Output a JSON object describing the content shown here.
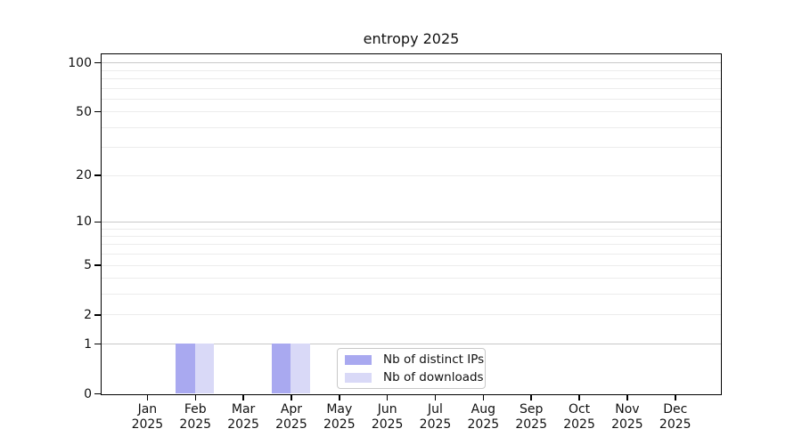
{
  "chart_data": {
    "type": "bar",
    "title": "entropy 2025",
    "categories": [
      "Jan",
      "Feb",
      "Mar",
      "Apr",
      "May",
      "Jun",
      "Jul",
      "Aug",
      "Sep",
      "Oct",
      "Nov",
      "Dec"
    ],
    "category_year": "2025",
    "series": [
      {
        "name": "Nb of distinct IPs",
        "color": "#a9a9f0",
        "values": [
          0,
          1,
          0,
          1,
          0,
          0,
          0,
          0,
          0,
          0,
          0,
          0
        ]
      },
      {
        "name": "Nb of downloads",
        "color": "#d9d9f7",
        "values": [
          0,
          1,
          0,
          1,
          0,
          0,
          0,
          0,
          0,
          0,
          0,
          0
        ]
      }
    ],
    "xlabel": "",
    "ylabel": "",
    "y_scale": "log10(value+1)",
    "ylim": [
      0,
      113
    ],
    "yticks_labeled": [
      0,
      1,
      2,
      5,
      10,
      20,
      50,
      100
    ],
    "grid_major_values": [
      1,
      10,
      100
    ],
    "grid_minor_values": [
      2,
      3,
      4,
      5,
      6,
      7,
      8,
      9,
      20,
      30,
      40,
      50,
      60,
      70,
      80,
      90
    ],
    "grid": true,
    "legend_position": "lower center",
    "colors": {
      "major_grid": "#c8c8c8",
      "minor_grid": "#ececec",
      "axis": "#000000",
      "background": "#ffffff",
      "legend_border": "#c8c8c8"
    }
  }
}
